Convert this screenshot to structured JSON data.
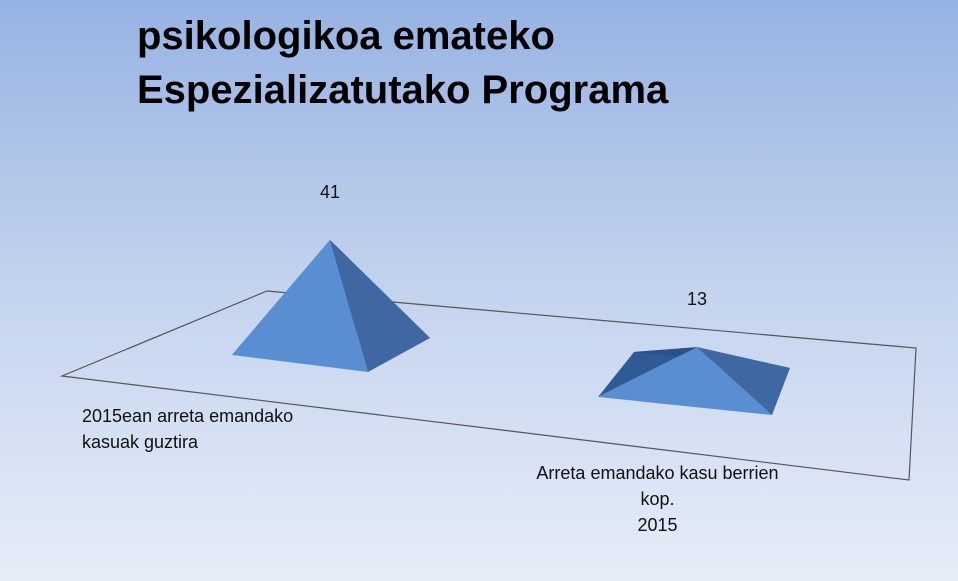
{
  "chart_data": {
    "type": "pyramid3d",
    "title": [
      "psikologikoa emateko",
      "Espezializatutako Programa"
    ],
    "categories": [
      "2015ean arreta emandako\nkasuak guztira",
      "Arreta emandako kasu berrien\nkop.\n2015"
    ],
    "values": [
      41,
      13
    ],
    "color": "#4f81bd"
  }
}
